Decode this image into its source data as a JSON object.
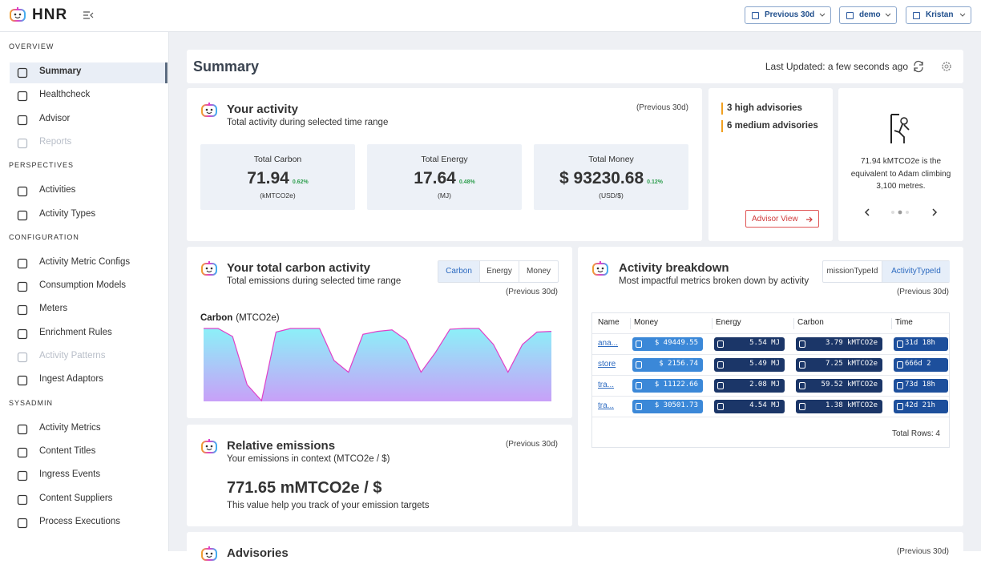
{
  "header": {
    "logo": "HNR",
    "buttons": [
      "Previous 30d",
      "demo",
      "Kristan"
    ]
  },
  "sidebar": {
    "sections": [
      {
        "title": "OVERVIEW",
        "items": [
          {
            "label": "Summary",
            "active": true
          },
          {
            "label": "Healthcheck"
          },
          {
            "label": "Advisor"
          },
          {
            "label": "Reports",
            "disabled": true
          }
        ]
      },
      {
        "title": "PERSPECTIVES",
        "items": [
          {
            "label": "Activities"
          },
          {
            "label": "Activity Types"
          }
        ]
      },
      {
        "title": "CONFIGURATION",
        "items": [
          {
            "label": "Activity Metric Configs"
          },
          {
            "label": "Consumption Models"
          },
          {
            "label": "Meters"
          },
          {
            "label": "Enrichment Rules"
          },
          {
            "label": "Activity Patterns",
            "disabled": true
          },
          {
            "label": "Ingest Adaptors"
          }
        ]
      },
      {
        "title": "SYSADMIN",
        "items": [
          {
            "label": "Activity Metrics"
          },
          {
            "label": "Content Titles"
          },
          {
            "label": "Ingress Events"
          },
          {
            "label": "Content Suppliers"
          },
          {
            "label": "Process Executions"
          }
        ]
      }
    ]
  },
  "summary": {
    "title": "Summary",
    "last_updated": "Last Updated: a few seconds ago"
  },
  "activity": {
    "title": "Your activity",
    "subtitle": "Total activity during selected time range",
    "period": "(Previous 30d)",
    "stats": [
      {
        "label": "Total Carbon",
        "value": "71.94",
        "change": "0.62%",
        "unit": "(kMTCO2e)"
      },
      {
        "label": "Total Energy",
        "value": "17.64",
        "change": "0.48%",
        "unit": "(MJ)"
      },
      {
        "label": "Total Money",
        "value": "$ 93230.68",
        "change": "0.12%",
        "unit": "(USD/$)"
      }
    ]
  },
  "advisories_panel": {
    "items": [
      "3 high advisories",
      "6 medium advisories"
    ],
    "button": "Advisor View"
  },
  "equivalent": {
    "text": "71.94 kMTCO2e is the equivalent to Adam climbing 3,100 metres."
  },
  "carbon_activity": {
    "title": "Your total carbon activity",
    "subtitle": "Total emissions during selected time range",
    "tabs": [
      "Carbon",
      "Energy",
      "Money"
    ],
    "active_tab": 0,
    "period": "(Previous 30d)"
  },
  "carbon_chart": {
    "type": "area",
    "title": "Carbon",
    "unit": "(MTCO2e)",
    "ylim": [
      0,
      100
    ],
    "line_color": "#e040c8",
    "values": [
      100,
      100,
      89,
      23,
      1,
      95,
      100,
      100,
      100,
      56,
      40,
      92,
      96,
      98,
      84,
      40,
      67,
      99,
      100,
      100,
      78,
      40,
      78,
      95,
      96
    ]
  },
  "breakdown": {
    "title": "Activity breakdown",
    "subtitle": "Most impactful metrics broken down by activity",
    "tabs": [
      "missionTypeId",
      "ActivityTypeId"
    ],
    "active_tab": 1,
    "period": "(Previous 30d)",
    "table": {
      "headers": [
        "Name",
        "Money",
        "Energy",
        "Carbon",
        "Time"
      ],
      "rows": [
        [
          "ana...",
          "$ 49449.55",
          "5.54 MJ",
          "3.79 kMTCO2e",
          "31d 18h"
        ],
        [
          "store",
          "$ 2156.74",
          "5.49 MJ",
          "7.25 kMTCO2e",
          "666d 2"
        ],
        [
          "tra...",
          "$ 11122.66",
          "2.08 MJ",
          "59.52 kMTCO2e",
          "73d 18h"
        ],
        [
          "tra...",
          "$ 30501.73",
          "4.54 MJ",
          "1.38 kMTCO2e",
          "42d 21h"
        ]
      ],
      "footer": "Total Rows: 4"
    }
  },
  "relative": {
    "title": "Relative emissions",
    "subtitle": "Your emissions in context (MTCO2e / $)",
    "period": "(Previous 30d)",
    "value": "771.65 mMTCO2e / $",
    "note": "This value help you track of your emission targets"
  },
  "advisories": {
    "title": "Advisories",
    "period": "(Previous 30d)"
  }
}
